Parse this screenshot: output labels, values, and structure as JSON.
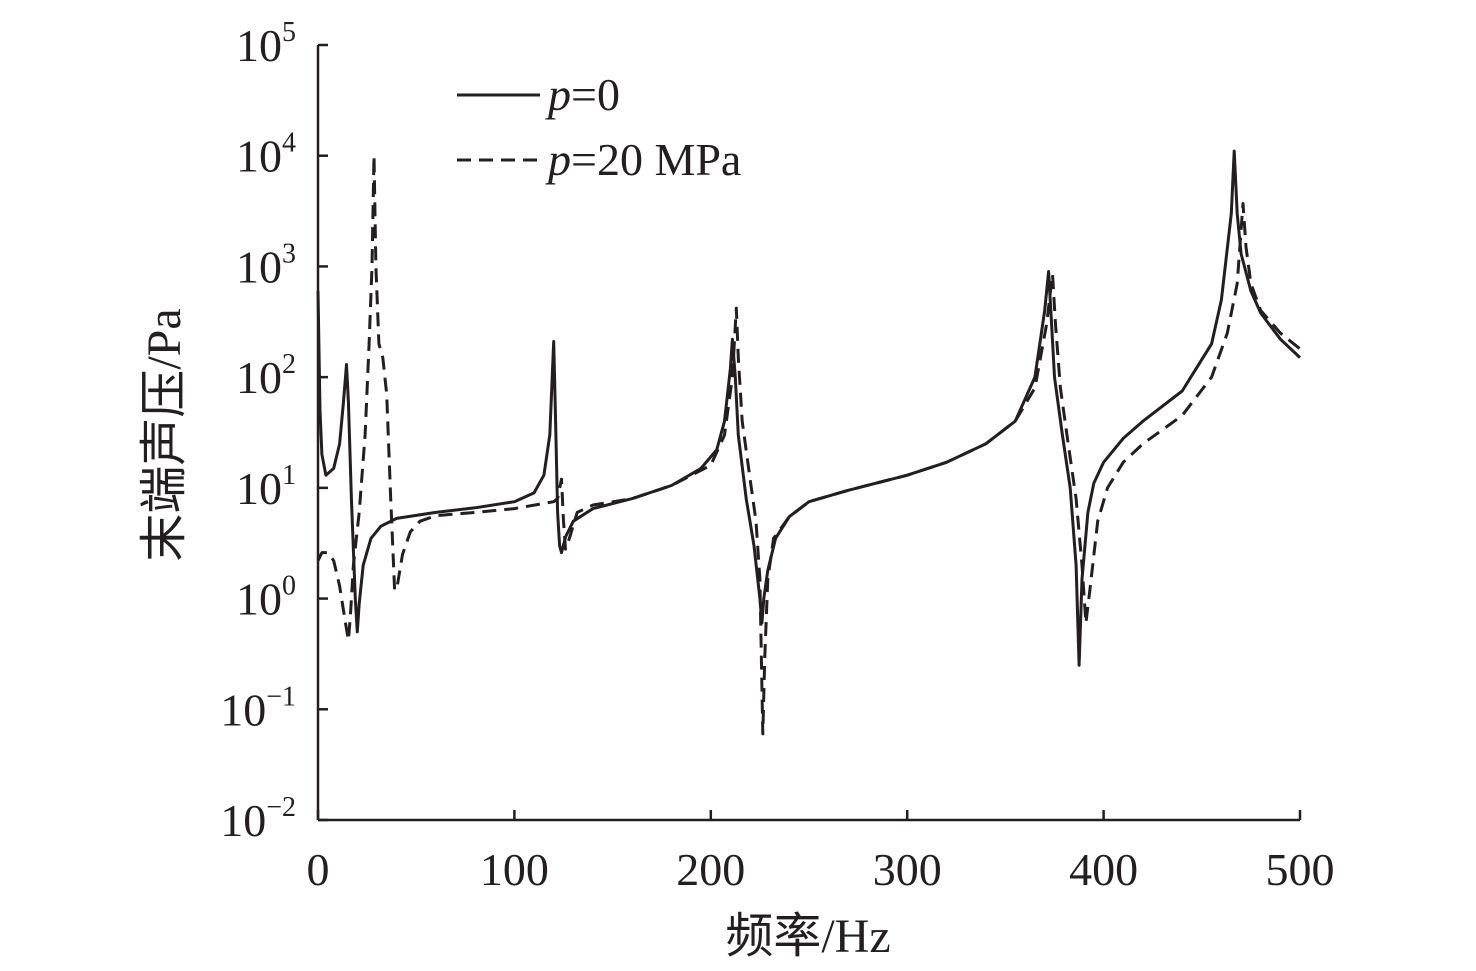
{
  "chart_data": {
    "type": "line",
    "xlabel": "频率/Hz",
    "ylabel": "末端声压/Pa",
    "xlim": [
      0,
      500
    ],
    "ylim": [
      0.01,
      100000
    ],
    "yscale": "log",
    "grid": false,
    "legend_position": "top-left",
    "x_ticks": [
      0,
      100,
      200,
      300,
      400,
      500
    ],
    "x_tick_labels": [
      "0",
      "100",
      "200",
      "300",
      "400",
      "500"
    ],
    "y_ticks": [
      {
        "exp": -2,
        "base": "10",
        "sup": "−2"
      },
      {
        "exp": -1,
        "base": "10",
        "sup": "−1"
      },
      {
        "exp": 0,
        "base": "10",
        "sup": "0"
      },
      {
        "exp": 1,
        "base": "10",
        "sup": "1"
      },
      {
        "exp": 2,
        "base": "10",
        "sup": "2"
      },
      {
        "exp": 3,
        "base": "10",
        "sup": "3"
      },
      {
        "exp": 4,
        "base": "10",
        "sup": "4"
      },
      {
        "exp": 5,
        "base": "10",
        "sup": "5"
      }
    ],
    "series": [
      {
        "name": "p=0",
        "name_italic": "p",
        "name_rest": "=0",
        "style": "solid",
        "color": "#231f20",
        "points": [
          [
            0,
            600
          ],
          [
            1,
            50
          ],
          [
            2,
            20
          ],
          [
            4,
            13
          ],
          [
            8,
            15
          ],
          [
            11,
            25
          ],
          [
            13,
            60
          ],
          [
            14.5,
            130
          ],
          [
            15.5,
            60
          ],
          [
            17,
            8
          ],
          [
            19,
            1
          ],
          [
            20,
            0.5
          ],
          [
            21,
            0.9
          ],
          [
            23,
            2
          ],
          [
            27,
            3.5
          ],
          [
            32,
            4.5
          ],
          [
            40,
            5.3
          ],
          [
            60,
            6
          ],
          [
            80,
            6.6
          ],
          [
            100,
            7.5
          ],
          [
            110,
            9
          ],
          [
            115,
            13
          ],
          [
            118,
            30
          ],
          [
            120,
            210
          ],
          [
            121,
            40
          ],
          [
            122,
            6
          ],
          [
            123,
            3
          ],
          [
            124,
            2.6
          ],
          [
            126,
            3.6
          ],
          [
            130,
            5
          ],
          [
            140,
            6.5
          ],
          [
            160,
            8
          ],
          [
            180,
            10.5
          ],
          [
            195,
            15
          ],
          [
            203,
            22
          ],
          [
            207,
            40
          ],
          [
            210,
            120
          ],
          [
            211,
            220
          ],
          [
            212.5,
            100
          ],
          [
            214,
            30
          ],
          [
            218,
            8
          ],
          [
            222,
            3
          ],
          [
            225,
            1
          ],
          [
            226,
            0.6
          ],
          [
            227,
            1
          ],
          [
            229,
            1.8
          ],
          [
            233,
            3.5
          ],
          [
            240,
            5.5
          ],
          [
            250,
            7.5
          ],
          [
            270,
            9.5
          ],
          [
            300,
            13
          ],
          [
            320,
            17
          ],
          [
            340,
            25
          ],
          [
            355,
            40
          ],
          [
            365,
            100
          ],
          [
            370,
            400
          ],
          [
            372,
            900
          ],
          [
            373.5,
            300
          ],
          [
            375,
            100
          ],
          [
            379,
            30
          ],
          [
            383,
            10
          ],
          [
            386,
            2
          ],
          [
            387.5,
            0.25
          ],
          [
            389,
            1.5
          ],
          [
            392,
            6
          ],
          [
            395,
            11
          ],
          [
            400,
            17
          ],
          [
            410,
            28
          ],
          [
            420,
            40
          ],
          [
            440,
            75
          ],
          [
            455,
            200
          ],
          [
            460,
            500
          ],
          [
            465,
            3000
          ],
          [
            466.5,
            11000
          ],
          [
            468,
            3000
          ],
          [
            470,
            1300
          ],
          [
            475,
            600
          ],
          [
            480,
            380
          ],
          [
            490,
            220
          ],
          [
            500,
            150
          ]
        ]
      },
      {
        "name": "p=20 MPa",
        "name_italic": "p",
        "name_rest": "=20 MPa",
        "style": "dashed",
        "color": "#231f20",
        "points": [
          [
            0,
            2.2
          ],
          [
            2,
            2.6
          ],
          [
            5,
            2.6
          ],
          [
            8,
            2.2
          ],
          [
            11,
            1.3
          ],
          [
            14,
            0.6
          ],
          [
            15.5,
            0.42
          ],
          [
            16.5,
            0.7
          ],
          [
            18,
            2
          ],
          [
            21,
            6
          ],
          [
            24,
            30
          ],
          [
            26,
            200
          ],
          [
            27.5,
            1000
          ],
          [
            28.5,
            10000
          ],
          [
            29.5,
            1000
          ],
          [
            31,
            200
          ],
          [
            33,
            150
          ],
          [
            35,
            70
          ],
          [
            37,
            8
          ],
          [
            39,
            1.2
          ],
          [
            40,
            1.2
          ],
          [
            43,
            2.5
          ],
          [
            47,
            4
          ],
          [
            52,
            5
          ],
          [
            60,
            5.6
          ],
          [
            80,
            6
          ],
          [
            100,
            6.5
          ],
          [
            120,
            7.5
          ],
          [
            122,
            8
          ],
          [
            124,
            12
          ],
          [
            125,
            5
          ],
          [
            126,
            2.8
          ],
          [
            128,
            3.5
          ],
          [
            132,
            6
          ],
          [
            140,
            7
          ],
          [
            160,
            8
          ],
          [
            180,
            10.5
          ],
          [
            200,
            16
          ],
          [
            207,
            30
          ],
          [
            211,
            100
          ],
          [
            213,
            420
          ],
          [
            214,
            150
          ],
          [
            216,
            40
          ],
          [
            220,
            12
          ],
          [
            223,
            5
          ],
          [
            225,
            1.5
          ],
          [
            226.5,
            0.06
          ],
          [
            227.5,
            0.3
          ],
          [
            229,
            1.5
          ],
          [
            232,
            3.5
          ],
          [
            240,
            5.5
          ],
          [
            250,
            7.5
          ],
          [
            270,
            9.5
          ],
          [
            300,
            13
          ],
          [
            320,
            17
          ],
          [
            340,
            25
          ],
          [
            355,
            40
          ],
          [
            365,
            80
          ],
          [
            371,
            300
          ],
          [
            374,
            850
          ],
          [
            375.5,
            300
          ],
          [
            378,
            80
          ],
          [
            382,
            25
          ],
          [
            386,
            8
          ],
          [
            389,
            2
          ],
          [
            391,
            0.6
          ],
          [
            393,
            1.2
          ],
          [
            397,
            5
          ],
          [
            402,
            10
          ],
          [
            410,
            17
          ],
          [
            420,
            25
          ],
          [
            440,
            45
          ],
          [
            455,
            100
          ],
          [
            463,
            250
          ],
          [
            468,
            700
          ],
          [
            471,
            3700
          ],
          [
            472.5,
            1500
          ],
          [
            475,
            700
          ],
          [
            480,
            400
          ],
          [
            490,
            250
          ],
          [
            500,
            180
          ]
        ]
      }
    ]
  }
}
